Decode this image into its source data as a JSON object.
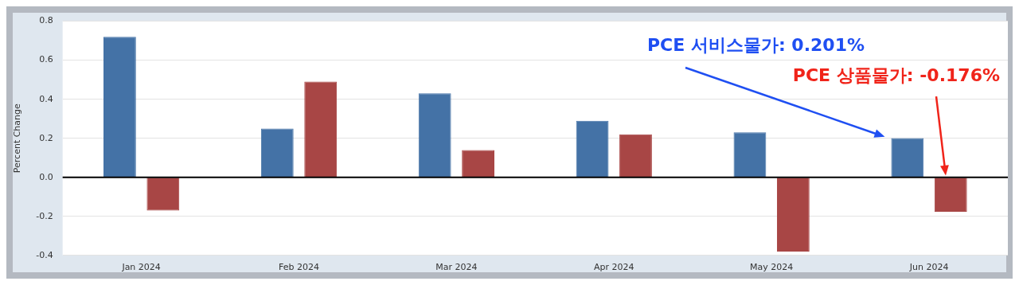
{
  "chart_data": {
    "type": "bar",
    "ylabel": "Percent Change",
    "categories": [
      "Jan 2024",
      "Feb 2024",
      "Mar 2024",
      "Apr 2024",
      "May 2024",
      "Jun 2024"
    ],
    "series": [
      {
        "color": "#4472a6",
        "values": [
          0.72,
          0.25,
          0.43,
          0.29,
          0.23,
          0.201
        ]
      },
      {
        "color": "#a84645",
        "values": [
          -0.17,
          0.49,
          0.14,
          0.22,
          -0.38,
          -0.176
        ]
      }
    ],
    "ylim": [
      -0.4,
      0.8
    ],
    "yticks": [
      {
        "value": -0.4,
        "label": "-0.4"
      },
      {
        "value": -0.2,
        "label": "-0.2"
      },
      {
        "value": 0,
        "label": "0.0"
      },
      {
        "value": 0.2,
        "label": "0.2"
      },
      {
        "value": 0.4,
        "label": "0.4"
      },
      {
        "value": 0.6,
        "label": "0.6"
      },
      {
        "value": 0.8,
        "label": "0.8"
      }
    ],
    "grid": "y",
    "legend": false,
    "ref_lines": [
      {
        "axis": "y",
        "value": 0,
        "color": "#000000"
      }
    ],
    "annotations": [
      "PCE 서비스물가: 0.201%",
      "PCE 상품물가: -0.176%"
    ]
  }
}
